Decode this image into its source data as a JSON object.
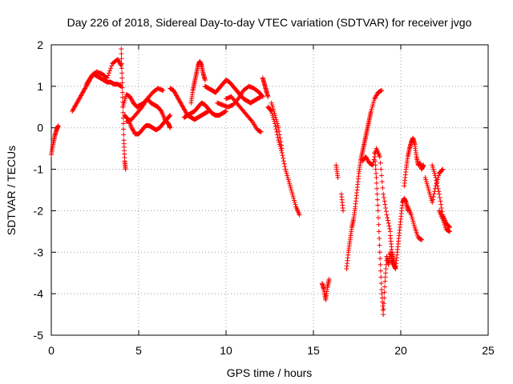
{
  "chart_data": {
    "type": "scatter",
    "title": "Day 226 of 2018, Sidereal Day-to-day VTEC variation (SDTVAR) for receiver jvgo",
    "xlabel": "GPS time / hours",
    "ylabel": "SDTVAR / TECUs",
    "xlim": [
      0,
      25
    ],
    "ylim": [
      -5,
      2
    ],
    "xticks": [
      0,
      5,
      10,
      15,
      20,
      25
    ],
    "yticks": [
      -5,
      -4,
      -3,
      -2,
      -1,
      0,
      1,
      2
    ],
    "grid": true,
    "marker": "+",
    "series": [
      {
        "name": "SDTVAR",
        "color": "#ff0000",
        "tracks": [
          {
            "x": [
              0.0,
              0.1,
              0.2,
              0.3,
              0.4
            ],
            "y": [
              -0.65,
              -0.4,
              -0.2,
              -0.05,
              0.05
            ]
          },
          {
            "x": [
              1.2,
              1.4,
              1.6,
              1.8,
              2.0,
              2.2,
              2.4,
              2.6,
              2.8,
              3.0,
              3.2,
              3.4,
              3.6,
              3.8,
              4.0
            ],
            "y": [
              0.4,
              0.55,
              0.7,
              0.85,
              1.0,
              1.15,
              1.3,
              1.25,
              1.2,
              1.15,
              1.1,
              1.1,
              1.05,
              1.05,
              1.0
            ]
          },
          {
            "x": [
              2.0,
              2.3,
              2.6,
              2.9,
              3.2,
              3.5,
              3.8,
              4.0
            ],
            "y": [
              1.05,
              1.25,
              1.35,
              1.3,
              1.2,
              1.55,
              1.65,
              1.5
            ]
          },
          {
            "x": [
              4.0,
              4.05,
              4.1,
              4.15,
              4.2,
              4.25
            ],
            "y": [
              1.9,
              1.2,
              0.5,
              -0.3,
              -0.8,
              -1.0
            ]
          },
          {
            "x": [
              4.1,
              4.3,
              4.5,
              4.7,
              4.9,
              5.1,
              5.3,
              5.5,
              5.7,
              5.9,
              6.1,
              6.3,
              6.5,
              6.7,
              6.8
            ],
            "y": [
              0.5,
              0.8,
              0.75,
              0.6,
              0.5,
              0.55,
              0.6,
              0.7,
              0.6,
              0.55,
              0.5,
              0.4,
              0.2,
              0.1,
              0.0
            ]
          },
          {
            "x": [
              4.2,
              4.4,
              4.6,
              4.8,
              5.0,
              5.2,
              5.4,
              5.6,
              5.8,
              6.0,
              6.2,
              6.4,
              6.6,
              6.8
            ],
            "y": [
              0.3,
              0.2,
              0.0,
              -0.15,
              -0.15,
              -0.05,
              0.05,
              0.05,
              0.0,
              -0.05,
              0.0,
              0.1,
              0.2,
              0.3
            ]
          },
          {
            "x": [
              4.3,
              4.6,
              4.9,
              5.2,
              5.5,
              5.8,
              6.1,
              6.4
            ],
            "y": [
              0.15,
              0.2,
              0.35,
              0.5,
              0.7,
              0.85,
              0.95,
              0.9
            ]
          },
          {
            "x": [
              6.8,
              7.0,
              7.2,
              7.4,
              7.6,
              7.8,
              8.0,
              8.2,
              8.4,
              8.6,
              8.8,
              9.0
            ],
            "y": [
              0.95,
              0.9,
              0.75,
              0.6,
              0.45,
              0.3,
              0.25,
              0.2,
              0.25,
              0.3,
              0.35,
              0.4
            ]
          },
          {
            "x": [
              7.6,
              7.8,
              8.0,
              8.2,
              8.4,
              8.6,
              8.8,
              9.0,
              9.2,
              9.4,
              9.6,
              9.8,
              10.0
            ],
            "y": [
              0.25,
              0.3,
              0.35,
              0.4,
              0.5,
              0.6,
              0.55,
              0.45,
              0.35,
              0.3,
              0.3,
              0.35,
              0.4
            ]
          },
          {
            "x": [
              8.0,
              8.1,
              8.2,
              8.3,
              8.4,
              8.5,
              8.6,
              8.7,
              8.8
            ],
            "y": [
              0.6,
              0.9,
              1.1,
              1.3,
              1.5,
              1.6,
              1.5,
              1.3,
              1.15
            ]
          },
          {
            "x": [
              8.8,
              9.0,
              9.2,
              9.4,
              9.6,
              9.8,
              10.0,
              10.2,
              10.4,
              10.6,
              10.8,
              11.0,
              11.2,
              11.4,
              11.6,
              11.8,
              12.0
            ],
            "y": [
              1.0,
              0.95,
              0.9,
              0.85,
              0.95,
              1.05,
              1.15,
              1.1,
              1.0,
              0.9,
              0.8,
              0.7,
              0.65,
              0.6,
              0.65,
              0.7,
              0.75
            ]
          },
          {
            "x": [
              9.5,
              9.8,
              10.1,
              10.4,
              10.7,
              11.0,
              11.3,
              11.6,
              11.9,
              12.1
            ],
            "y": [
              0.6,
              0.55,
              0.5,
              0.55,
              0.7,
              0.9,
              1.0,
              0.95,
              0.85,
              0.75
            ]
          },
          {
            "x": [
              10.0,
              10.3,
              10.6,
              10.9,
              11.2,
              11.5,
              11.8,
              12.0
            ],
            "y": [
              0.7,
              0.75,
              0.6,
              0.45,
              0.3,
              0.15,
              -0.05,
              -0.1
            ]
          },
          {
            "x": [
              12.1,
              12.2,
              12.3,
              12.4
            ],
            "y": [
              1.2,
              1.05,
              0.9,
              0.75
            ]
          },
          {
            "x": [
              12.4,
              12.6,
              12.8,
              13.0,
              13.2,
              13.4,
              13.6,
              13.8,
              14.0,
              14.2
            ],
            "y": [
              0.5,
              0.4,
              0.1,
              -0.3,
              -0.6,
              -1.0,
              -1.3,
              -1.6,
              -1.9,
              -2.1
            ]
          },
          {
            "x": [
              12.6,
              12.8,
              13.0,
              13.2
            ],
            "y": [
              0.6,
              0.3,
              0.0,
              -0.5
            ]
          },
          {
            "x": [
              15.5,
              15.6,
              15.7,
              15.8,
              15.9
            ],
            "y": [
              -3.75,
              -3.9,
              -4.15,
              -3.85,
              -3.65
            ]
          },
          {
            "x": [
              16.3,
              16.4
            ],
            "y": [
              -0.9,
              -1.2
            ]
          },
          {
            "x": [
              16.6,
              16.7
            ],
            "y": [
              -1.6,
              -2.0
            ]
          },
          {
            "x": [
              16.9,
              17.0,
              17.1,
              17.2,
              17.3,
              17.4,
              17.5,
              17.6,
              17.7,
              17.8,
              17.9,
              18.0,
              18.1,
              18.2,
              18.3,
              18.5,
              18.7,
              18.9
            ],
            "y": [
              -3.4,
              -3.0,
              -2.7,
              -2.4,
              -2.2,
              -1.9,
              -1.5,
              -1.1,
              -0.8,
              -0.6,
              -0.4,
              -0.2,
              0.0,
              0.2,
              0.4,
              0.7,
              0.85,
              0.9
            ]
          },
          {
            "x": [
              17.8,
              18.0,
              18.2,
              18.4,
              18.6,
              18.8,
              19.0,
              19.2,
              19.4
            ],
            "y": [
              -0.8,
              -0.7,
              -0.85,
              -0.9,
              -0.5,
              -0.7,
              -1.6,
              -2.1,
              -2.5
            ]
          },
          {
            "x": [
              18.5,
              18.6,
              18.7,
              18.8,
              18.9,
              19.0,
              19.1,
              19.2,
              19.3,
              19.4,
              19.5,
              19.6,
              19.7
            ],
            "y": [
              -0.6,
              -1.2,
              -2.0,
              -3.0,
              -3.9,
              -4.5,
              -3.7,
              -3.1,
              -3.3,
              -3.0,
              -3.2,
              -3.3,
              -3.4
            ]
          },
          {
            "x": [
              19.4,
              19.5,
              19.6,
              19.7,
              19.8,
              19.9,
              20.0,
              20.1,
              20.2,
              20.3,
              20.4
            ],
            "y": [
              -2.6,
              -3.0,
              -3.2,
              -3.4,
              -3.0,
              -2.6,
              -2.2,
              -1.8,
              -1.7,
              -1.8,
              -2.0
            ]
          },
          {
            "x": [
              20.2,
              20.3,
              20.4,
              20.5,
              20.6,
              20.7,
              20.8,
              20.9,
              21.0,
              21.1,
              21.2,
              21.3
            ],
            "y": [
              -1.4,
              -1.0,
              -0.7,
              -0.5,
              -0.35,
              -0.25,
              -0.4,
              -0.7,
              -0.9,
              -0.85,
              -1.0,
              -0.9
            ]
          },
          {
            "x": [
              20.4,
              20.6,
              20.8,
              21.0,
              21.2
            ],
            "y": [
              -1.9,
              -2.1,
              -2.4,
              -2.65,
              -2.7
            ]
          },
          {
            "x": [
              21.4,
              21.6,
              21.8,
              22.0,
              22.2,
              22.4
            ],
            "y": [
              -1.2,
              -1.5,
              -1.8,
              -1.4,
              -1.1,
              -1.0
            ]
          },
          {
            "x": [
              21.8,
              22.0,
              22.2,
              22.4,
              22.6,
              22.8
            ],
            "y": [
              -0.9,
              -1.2,
              -1.6,
              -2.1,
              -2.3,
              -2.4
            ]
          },
          {
            "x": [
              22.2,
              22.4,
              22.6,
              22.8
            ],
            "y": [
              -2.0,
              -2.2,
              -2.45,
              -2.5
            ]
          }
        ]
      }
    ]
  }
}
